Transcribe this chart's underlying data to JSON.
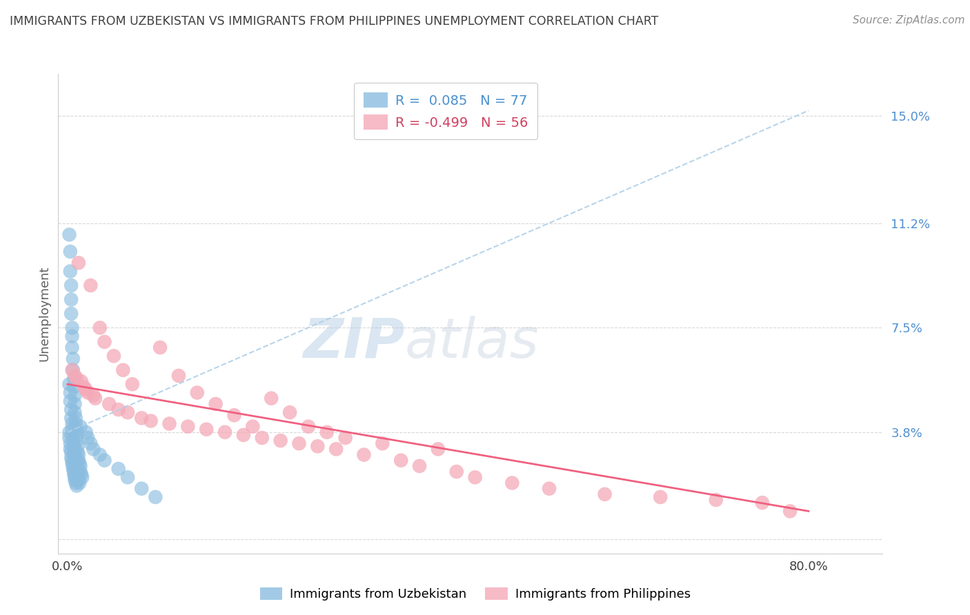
{
  "title": "IMMIGRANTS FROM UZBEKISTAN VS IMMIGRANTS FROM PHILIPPINES UNEMPLOYMENT CORRELATION CHART",
  "source": "Source: ZipAtlas.com",
  "ylabel": "Unemployment",
  "y_ticks": [
    0.0,
    0.038,
    0.075,
    0.112,
    0.15
  ],
  "y_tick_labels": [
    "",
    "3.8%",
    "7.5%",
    "11.2%",
    "15.0%"
  ],
  "x_tick_labels_bottom": [
    "0.0%",
    "80.0%"
  ],
  "xlim": [
    -0.01,
    0.88
  ],
  "ylim": [
    -0.005,
    0.165
  ],
  "uzbekistan_color": "#8bbde0",
  "philippines_color": "#f4aab8",
  "uzbekistan_trend_color": "#b0d0e8",
  "philippines_trend_color": "#f06080",
  "tick_color_y": "#5090d0",
  "grid_color": "#d8d8d8",
  "background_color": "#ffffff",
  "title_color": "#404040",
  "source_color": "#909090",
  "watermark_zip_color": "#c8d8ea",
  "watermark_atlas_color": "#c0c8d8",
  "legend_label_uzbekistan": "R =  0.085   N = 77",
  "legend_label_philippines": "R = -0.499   N = 56",
  "legend_text_color_uzbekistan": "#4a90d0",
  "legend_text_color_philippines": "#d04060",
  "legend_bottom_uzbekistan": "Immigrants from Uzbekistan",
  "legend_bottom_philippines": "Immigrants from Philippines",
  "uzbekistan_x": [
    0.002,
    0.003,
    0.003,
    0.004,
    0.004,
    0.004,
    0.005,
    0.005,
    0.005,
    0.006,
    0.006,
    0.007,
    0.007,
    0.008,
    0.008,
    0.008,
    0.009,
    0.009,
    0.01,
    0.01,
    0.01,
    0.011,
    0.011,
    0.012,
    0.012,
    0.013,
    0.014,
    0.014,
    0.015,
    0.016,
    0.002,
    0.003,
    0.003,
    0.004,
    0.004,
    0.005,
    0.005,
    0.006,
    0.006,
    0.007,
    0.007,
    0.008,
    0.008,
    0.009,
    0.009,
    0.01,
    0.01,
    0.011,
    0.012,
    0.013,
    0.002,
    0.002,
    0.003,
    0.003,
    0.004,
    0.004,
    0.005,
    0.005,
    0.006,
    0.006,
    0.007,
    0.007,
    0.008,
    0.008,
    0.009,
    0.01,
    0.014,
    0.02,
    0.022,
    0.025,
    0.028,
    0.035,
    0.04,
    0.055,
    0.065,
    0.08,
    0.095
  ],
  "uzbekistan_y": [
    0.108,
    0.102,
    0.095,
    0.09,
    0.085,
    0.08,
    0.075,
    0.072,
    0.068,
    0.064,
    0.06,
    0.057,
    0.054,
    0.051,
    0.048,
    0.045,
    0.043,
    0.041,
    0.039,
    0.037,
    0.035,
    0.033,
    0.031,
    0.03,
    0.028,
    0.027,
    0.026,
    0.024,
    0.023,
    0.022,
    0.055,
    0.052,
    0.049,
    0.046,
    0.043,
    0.041,
    0.039,
    0.037,
    0.035,
    0.033,
    0.031,
    0.03,
    0.028,
    0.027,
    0.025,
    0.024,
    0.023,
    0.022,
    0.021,
    0.02,
    0.038,
    0.036,
    0.034,
    0.032,
    0.031,
    0.029,
    0.028,
    0.027,
    0.026,
    0.025,
    0.024,
    0.023,
    0.022,
    0.021,
    0.02,
    0.019,
    0.04,
    0.038,
    0.036,
    0.034,
    0.032,
    0.03,
    0.028,
    0.025,
    0.022,
    0.018,
    0.015
  ],
  "philippines_x": [
    0.005,
    0.008,
    0.01,
    0.012,
    0.015,
    0.018,
    0.02,
    0.022,
    0.025,
    0.028,
    0.03,
    0.035,
    0.04,
    0.045,
    0.05,
    0.055,
    0.06,
    0.065,
    0.07,
    0.08,
    0.09,
    0.1,
    0.11,
    0.12,
    0.13,
    0.14,
    0.15,
    0.16,
    0.17,
    0.18,
    0.19,
    0.2,
    0.21,
    0.22,
    0.23,
    0.24,
    0.25,
    0.26,
    0.27,
    0.28,
    0.29,
    0.3,
    0.32,
    0.34,
    0.36,
    0.38,
    0.4,
    0.42,
    0.44,
    0.48,
    0.52,
    0.58,
    0.64,
    0.7,
    0.75,
    0.78
  ],
  "philippines_y": [
    0.06,
    0.058,
    0.057,
    0.098,
    0.056,
    0.054,
    0.053,
    0.052,
    0.09,
    0.051,
    0.05,
    0.075,
    0.07,
    0.048,
    0.065,
    0.046,
    0.06,
    0.045,
    0.055,
    0.043,
    0.042,
    0.068,
    0.041,
    0.058,
    0.04,
    0.052,
    0.039,
    0.048,
    0.038,
    0.044,
    0.037,
    0.04,
    0.036,
    0.05,
    0.035,
    0.045,
    0.034,
    0.04,
    0.033,
    0.038,
    0.032,
    0.036,
    0.03,
    0.034,
    0.028,
    0.026,
    0.032,
    0.024,
    0.022,
    0.02,
    0.018,
    0.016,
    0.015,
    0.014,
    0.013,
    0.01
  ],
  "uzbekistan_trend_x": [
    0.0,
    0.8
  ],
  "uzbekistan_trend_y": [
    0.038,
    0.152
  ],
  "philippines_trend_x": [
    0.0,
    0.8
  ],
  "philippines_trend_y": [
    0.055,
    0.01
  ]
}
